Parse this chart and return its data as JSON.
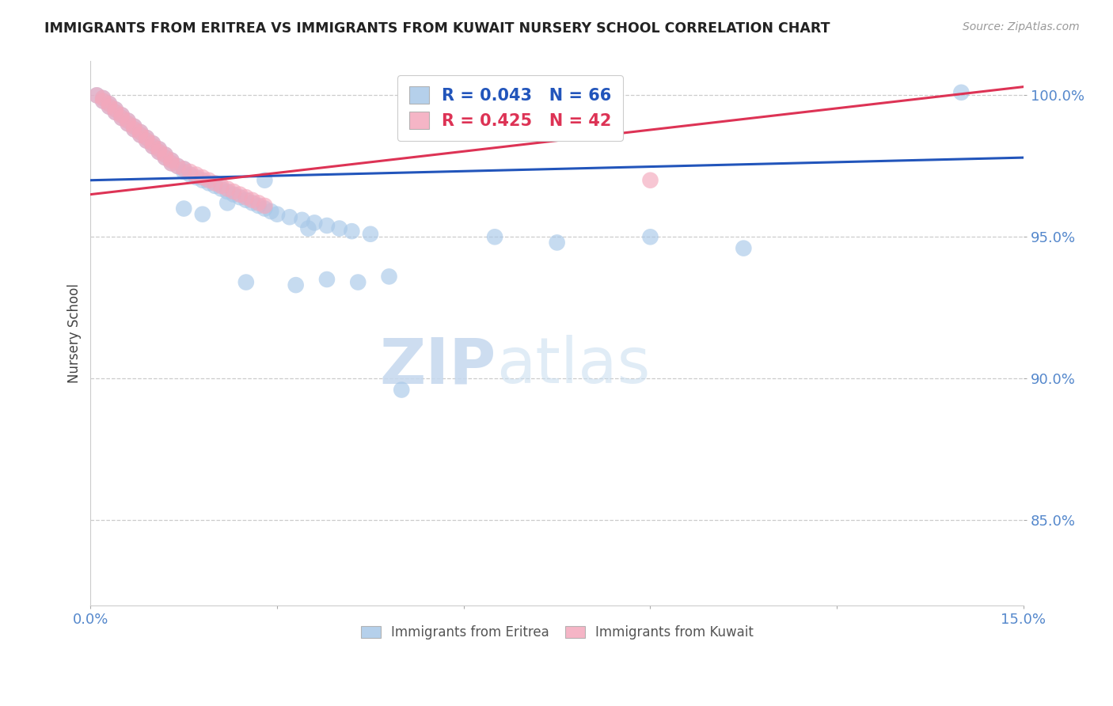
{
  "title": "IMMIGRANTS FROM ERITREA VS IMMIGRANTS FROM KUWAIT NURSERY SCHOOL CORRELATION CHART",
  "source": "Source: ZipAtlas.com",
  "ylabel": "Nursery School",
  "legend_label1": "Immigrants from Eritrea",
  "legend_label2": "Immigrants from Kuwait",
  "r1": 0.043,
  "n1": 66,
  "r2": 0.425,
  "n2": 42,
  "xlim": [
    0.0,
    0.15
  ],
  "ylim": [
    0.82,
    1.012
  ],
  "color_eritrea": "#a8c8e8",
  "color_kuwait": "#f4a8bc",
  "color_line_eritrea": "#2255bb",
  "color_line_kuwait": "#dd3355",
  "color_axis": "#5588cc",
  "background_color": "#ffffff",
  "blue_line_y0": 0.97,
  "blue_line_y1": 0.978,
  "pink_line_y0": 0.965,
  "pink_line_y1": 1.003,
  "eritrea_x": [
    0.001,
    0.002,
    0.002,
    0.003,
    0.003,
    0.004,
    0.004,
    0.005,
    0.005,
    0.006,
    0.006,
    0.007,
    0.007,
    0.008,
    0.008,
    0.009,
    0.009,
    0.01,
    0.01,
    0.011,
    0.011,
    0.012,
    0.012,
    0.013,
    0.013,
    0.014,
    0.015,
    0.015,
    0.016,
    0.017,
    0.018,
    0.019,
    0.02,
    0.021,
    0.022,
    0.023,
    0.024,
    0.025,
    0.026,
    0.027,
    0.028,
    0.029,
    0.03,
    0.032,
    0.034,
    0.036,
    0.038,
    0.04,
    0.042,
    0.045,
    0.015,
    0.018,
    0.022,
    0.028,
    0.035,
    0.05,
    0.065,
    0.075,
    0.09,
    0.105,
    0.025,
    0.033,
    0.038,
    0.043,
    0.048,
    0.14
  ],
  "eritrea_y": [
    1.0,
    0.999,
    0.998,
    0.997,
    0.996,
    0.995,
    0.994,
    0.993,
    0.992,
    0.991,
    0.99,
    0.989,
    0.988,
    0.987,
    0.986,
    0.985,
    0.984,
    0.983,
    0.982,
    0.981,
    0.98,
    0.979,
    0.978,
    0.977,
    0.976,
    0.975,
    0.974,
    0.973,
    0.972,
    0.971,
    0.97,
    0.969,
    0.968,
    0.967,
    0.966,
    0.965,
    0.964,
    0.963,
    0.962,
    0.961,
    0.96,
    0.959,
    0.958,
    0.957,
    0.956,
    0.955,
    0.954,
    0.953,
    0.952,
    0.951,
    0.96,
    0.958,
    0.962,
    0.97,
    0.953,
    0.896,
    0.95,
    0.948,
    0.95,
    0.946,
    0.934,
    0.933,
    0.935,
    0.934,
    0.936,
    1.001
  ],
  "kuwait_x": [
    0.001,
    0.002,
    0.002,
    0.003,
    0.003,
    0.004,
    0.004,
    0.005,
    0.005,
    0.006,
    0.006,
    0.007,
    0.007,
    0.008,
    0.008,
    0.009,
    0.009,
    0.01,
    0.01,
    0.011,
    0.011,
    0.012,
    0.012,
    0.013,
    0.013,
    0.014,
    0.015,
    0.016,
    0.017,
    0.018,
    0.019,
    0.02,
    0.021,
    0.022,
    0.023,
    0.024,
    0.025,
    0.026,
    0.027,
    0.028,
    0.065,
    0.09
  ],
  "kuwait_y": [
    1.0,
    0.999,
    0.998,
    0.997,
    0.996,
    0.995,
    0.994,
    0.993,
    0.992,
    0.991,
    0.99,
    0.989,
    0.988,
    0.987,
    0.986,
    0.985,
    0.984,
    0.983,
    0.982,
    0.981,
    0.98,
    0.979,
    0.978,
    0.977,
    0.976,
    0.975,
    0.974,
    0.973,
    0.972,
    0.971,
    0.97,
    0.969,
    0.968,
    0.967,
    0.966,
    0.965,
    0.964,
    0.963,
    0.962,
    0.961,
    1.001,
    0.97
  ]
}
